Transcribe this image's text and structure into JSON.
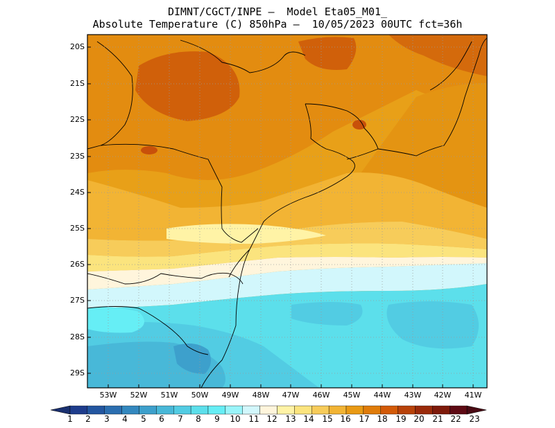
{
  "header": {
    "line1": "DIMNT/CGCT/INPE —  Model Eta05_M01_",
    "line2": "Absolute Temperature (C) 850hPa —  10/05/2023 00UTC fct=36h"
  },
  "map": {
    "lat_labels": [
      "20S",
      "21S",
      "22S",
      "23S",
      "24S",
      "25S",
      "26S",
      "27S",
      "28S",
      "29S"
    ],
    "lon_labels": [
      "53W",
      "52W",
      "51W",
      "50W",
      "49W",
      "48W",
      "47W",
      "46W",
      "45W",
      "44W",
      "43W",
      "42W",
      "41W"
    ]
  },
  "colorbar": {
    "labels": [
      "1",
      "2",
      "3",
      "4",
      "5",
      "6",
      "7",
      "8",
      "9",
      "10",
      "11",
      "12",
      "13",
      "14",
      "15",
      "16",
      "17",
      "18",
      "19",
      "20",
      "21",
      "22",
      "23"
    ],
    "colors": [
      "#1e3c8c",
      "#2356a0",
      "#2b6eb0",
      "#3388bf",
      "#3da0cc",
      "#48b8d8",
      "#52cce3",
      "#5cdfeb",
      "#66eef5",
      "#9af5fa",
      "#d2f7fc",
      "#fff5dc",
      "#fff3a6",
      "#fbe47e",
      "#f7cc5a",
      "#f2b434",
      "#e99a14",
      "#e07c0a",
      "#d35a08",
      "#b8420a",
      "#9a2a0a",
      "#7e1a0a",
      "#5e0a14"
    ],
    "under_color": "#1a3070",
    "over_color": "#4a0a14"
  }
}
